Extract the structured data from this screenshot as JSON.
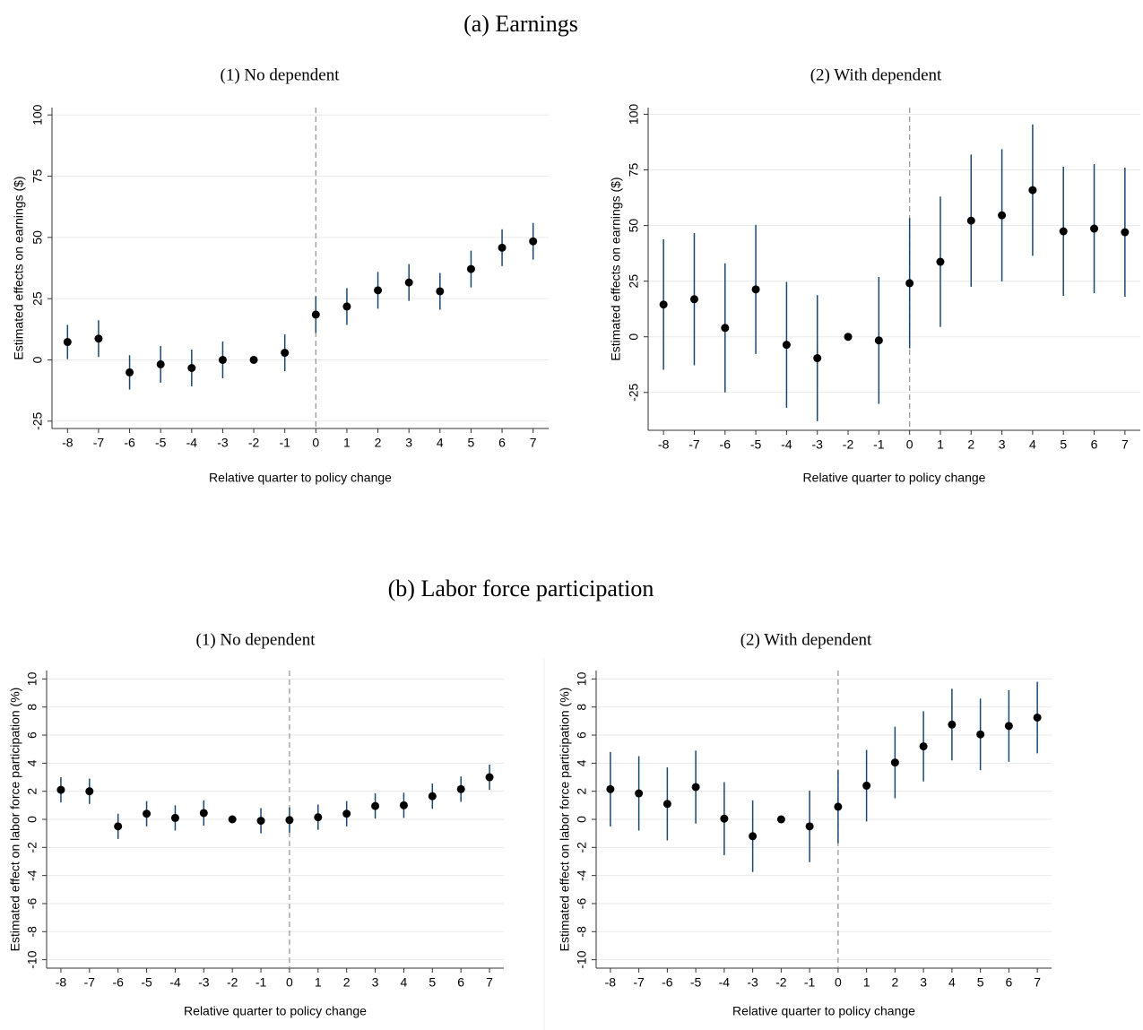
{
  "headings": [
    "(a) Earnings",
    "(b) Labor force participation"
  ],
  "chart_data": [
    {
      "type": "errorbar",
      "title": "(1) No dependent",
      "x_label": "Relative quarter to policy change",
      "y_label": "Estimated effects on earnings ($)",
      "x": [
        -8,
        -7,
        -6,
        -5,
        -4,
        -3,
        -2,
        -1,
        0,
        1,
        2,
        3,
        4,
        5,
        6,
        7
      ],
      "values": [
        7.3,
        8.7,
        -5.1,
        -1.8,
        -3.3,
        0,
        0,
        2.9,
        18.5,
        21.8,
        28.4,
        31.6,
        28,
        37.1,
        45.8,
        48.4
      ],
      "errors": [
        7,
        7.5,
        7,
        7.5,
        7.5,
        7.5,
        0,
        7.5,
        7.5,
        7.5,
        7.5,
        7.5,
        7.5,
        7.5,
        7.5,
        7.5
      ],
      "xlim": [
        -8.5,
        7.5
      ],
      "xticks": [
        -8,
        -7,
        -6,
        -5,
        -4,
        -3,
        -2,
        -1,
        0,
        1,
        2,
        3,
        4,
        5,
        6,
        7
      ],
      "ylim": [
        -28,
        103
      ],
      "yticks": [
        -25,
        0,
        25,
        50,
        75,
        100
      ],
      "vline": 0,
      "grid": true,
      "color": "#000000",
      "error_color": "#1a476f"
    },
    {
      "type": "errorbar",
      "title": "(2) With dependent",
      "x_label": "Relative quarter to policy change",
      "y_label": "Estimated effects on earnings ($)",
      "x": [
        -8,
        -7,
        -6,
        -5,
        -4,
        -3,
        -2,
        -1,
        0,
        1,
        2,
        3,
        4,
        5,
        6,
        7
      ],
      "values": [
        14.5,
        16.9,
        4,
        21.3,
        -3.6,
        -9.6,
        0,
        -1.6,
        24.1,
        33.7,
        52.2,
        54.6,
        65.9,
        47.4,
        48.6,
        47
      ],
      "errors": [
        29.3,
        29.7,
        29,
        29,
        28.3,
        28.3,
        0,
        28.5,
        29.3,
        29.3,
        29.7,
        29.7,
        29.5,
        29,
        29,
        29
      ],
      "xlim": [
        -8.5,
        7.5
      ],
      "xticks": [
        -8,
        -7,
        -6,
        -5,
        -4,
        -3,
        -2,
        -1,
        0,
        1,
        2,
        3,
        4,
        5,
        6,
        7
      ],
      "ylim": [
        -42,
        103
      ],
      "yticks": [
        -25,
        0,
        25,
        50,
        75,
        100
      ],
      "vline": 0,
      "grid": true,
      "color": "#000000",
      "error_color": "#1a476f"
    },
    {
      "type": "errorbar",
      "title": "(1) No dependent",
      "x_label": "Relative quarter to policy change",
      "y_label": "Estimated effect on labor force participation (%)",
      "x": [
        -8,
        -7,
        -6,
        -5,
        -4,
        -3,
        -2,
        -1,
        0,
        1,
        2,
        3,
        4,
        5,
        6,
        7
      ],
      "values": [
        2.1,
        2,
        -0.5,
        0.4,
        0.1,
        0.45,
        0,
        -0.1,
        -0.05,
        0.15,
        0.4,
        0.95,
        1,
        1.65,
        2.15,
        3
      ],
      "errors": [
        0.9,
        0.9,
        0.9,
        0.9,
        0.9,
        0.9,
        0,
        0.9,
        0.9,
        0.9,
        0.9,
        0.9,
        0.9,
        0.9,
        0.9,
        0.9
      ],
      "xlim": [
        -8.5,
        7.5
      ],
      "xticks": [
        -8,
        -7,
        -6,
        -5,
        -4,
        -3,
        -2,
        -1,
        0,
        1,
        2,
        3,
        4,
        5,
        6,
        7
      ],
      "ylim": [
        -10.6,
        10.6
      ],
      "yticks": [
        -10,
        -8,
        -6,
        -4,
        -2,
        0,
        2,
        4,
        6,
        8,
        10
      ],
      "vline": 0,
      "grid": true,
      "color": "#000000",
      "error_color": "#1a476f"
    },
    {
      "type": "errorbar",
      "title": "(2) With dependent",
      "x_label": "Relative quarter to policy change",
      "y_label": "Estimated effect on labor force participation (%)",
      "x": [
        -8,
        -7,
        -6,
        -5,
        -4,
        -3,
        -2,
        -1,
        0,
        1,
        2,
        3,
        4,
        5,
        6,
        7
      ],
      "values": [
        2.15,
        1.85,
        1.1,
        2.3,
        0.05,
        -1.2,
        0,
        -0.5,
        0.9,
        2.4,
        4.05,
        5.2,
        6.75,
        6.05,
        6.65,
        7.25
      ],
      "errors": [
        2.65,
        2.65,
        2.6,
        2.6,
        2.6,
        2.55,
        0,
        2.55,
        2.6,
        2.55,
        2.55,
        2.5,
        2.55,
        2.55,
        2.55,
        2.55
      ],
      "xlim": [
        -8.5,
        7.5
      ],
      "xticks": [
        -8,
        -7,
        -6,
        -5,
        -4,
        -3,
        -2,
        -1,
        0,
        1,
        2,
        3,
        4,
        5,
        6,
        7
      ],
      "ylim": [
        -10.6,
        10.6
      ],
      "yticks": [
        -10,
        -8,
        -6,
        -4,
        -2,
        0,
        2,
        4,
        6,
        8,
        10
      ],
      "vline": 0,
      "grid": true,
      "color": "#000000",
      "error_color": "#1a476f"
    }
  ]
}
